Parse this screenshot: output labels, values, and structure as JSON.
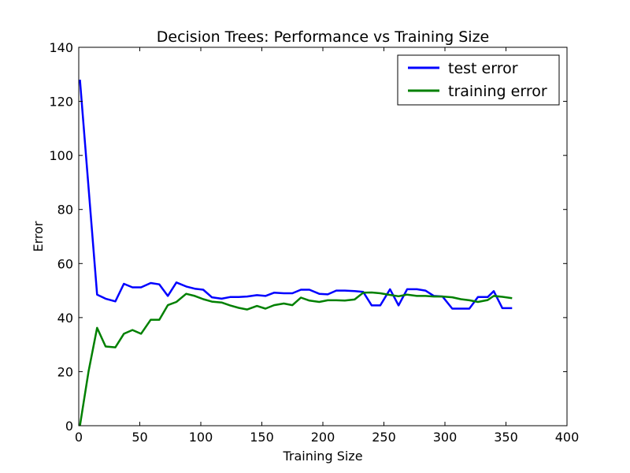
{
  "chart_data": {
    "type": "line",
    "title": "Decision Trees: Performance vs Training Size",
    "xlabel": "Training Size",
    "ylabel": "Error",
    "xlim": [
      0,
      400
    ],
    "ylim": [
      0,
      140
    ],
    "xticks": [
      0,
      50,
      100,
      150,
      200,
      250,
      300,
      350,
      400
    ],
    "yticks": [
      0,
      20,
      40,
      60,
      80,
      100,
      120,
      140
    ],
    "grid": false,
    "legend_position": "top-right",
    "series": [
      {
        "name": "test error",
        "color": "#0000ff",
        "x": [
          1,
          15,
          22,
          30,
          37,
          44,
          51,
          59,
          66,
          73,
          80,
          88,
          95,
          102,
          109,
          117,
          124,
          131,
          138,
          146,
          153,
          160,
          168,
          175,
          182,
          189,
          197,
          204,
          211,
          218,
          226,
          233,
          240,
          247,
          255,
          262,
          269,
          277,
          284,
          291,
          298,
          306,
          313,
          320,
          327,
          335,
          340,
          347,
          355
        ],
        "values": [
          128,
          48.5,
          47,
          46,
          52.5,
          51.2,
          51.2,
          52.8,
          52.3,
          48,
          53,
          51.5,
          50.7,
          50.3,
          47.5,
          47,
          47.6,
          47.6,
          47.8,
          48.3,
          48,
          49.2,
          49,
          49,
          50.3,
          50.3,
          48.8,
          48.6,
          50,
          50,
          49.8,
          49.5,
          44.5,
          44.5,
          50.5,
          44.5,
          50.5,
          50.5,
          50,
          48,
          47.8,
          43.3,
          43.3,
          43.3,
          47.6,
          47.6,
          49.8,
          43.5,
          43.5
        ]
      },
      {
        "name": "training error",
        "color": "#008000",
        "x": [
          1,
          8,
          15,
          22,
          30,
          37,
          44,
          51,
          59,
          66,
          73,
          80,
          88,
          95,
          102,
          109,
          117,
          124,
          131,
          138,
          146,
          153,
          160,
          168,
          175,
          182,
          189,
          197,
          204,
          211,
          218,
          226,
          233,
          240,
          247,
          255,
          262,
          269,
          277,
          284,
          291,
          298,
          306,
          313,
          320,
          327,
          335,
          340,
          347,
          355
        ],
        "values": [
          0,
          20,
          36.2,
          29.3,
          29,
          34,
          35.4,
          34,
          39.2,
          39.2,
          44.6,
          45.8,
          48.8,
          48,
          46.8,
          45.9,
          45.6,
          44.5,
          43.6,
          43,
          44.3,
          43.3,
          44.6,
          45.2,
          44.6,
          47.4,
          46.3,
          45.8,
          46.4,
          46.4,
          46.3,
          46.7,
          49.2,
          49.3,
          49,
          48.4,
          47.9,
          48.5,
          48,
          48,
          47.8,
          47.8,
          47.5,
          46.8,
          46.4,
          45.8,
          46.5,
          48,
          47.7,
          47.2
        ]
      }
    ]
  }
}
